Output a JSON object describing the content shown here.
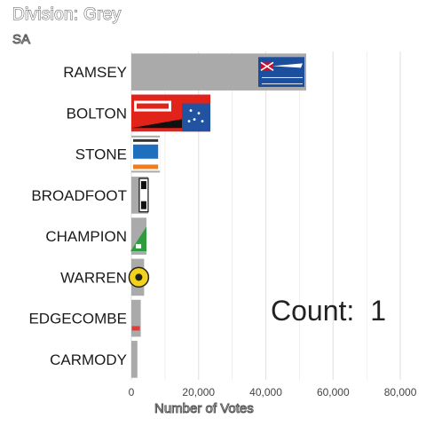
{
  "title": "Division: Grey",
  "subtitle": "SA",
  "count_label": "Count:",
  "count_value": "1",
  "chart_data": {
    "type": "bar",
    "orientation": "horizontal",
    "categories": [
      "RAMSEY",
      "BOLTON",
      "STONE",
      "BROADFOOT",
      "CHAMPION",
      "WARREN",
      "EDGECOMBE",
      "CARMODY"
    ],
    "values": [
      52000,
      23500,
      8500,
      5000,
      4500,
      3800,
      2800,
      1800
    ],
    "party_logos": [
      "liberal",
      "labor",
      "one-nation",
      "unknown-black-white",
      "greens",
      "family-first",
      "unknown-red",
      ""
    ],
    "xlabel": "Number of Votes",
    "xlim": [
      0,
      85000
    ],
    "xticks": [
      0,
      20000,
      40000,
      60000,
      80000
    ],
    "xtick_labels": [
      "0",
      "20,000",
      "40,000",
      "60,000",
      "80,000"
    ],
    "grid": true,
    "bar_color": "#aaaaaa",
    "grid_color": "#e4e4e4"
  }
}
